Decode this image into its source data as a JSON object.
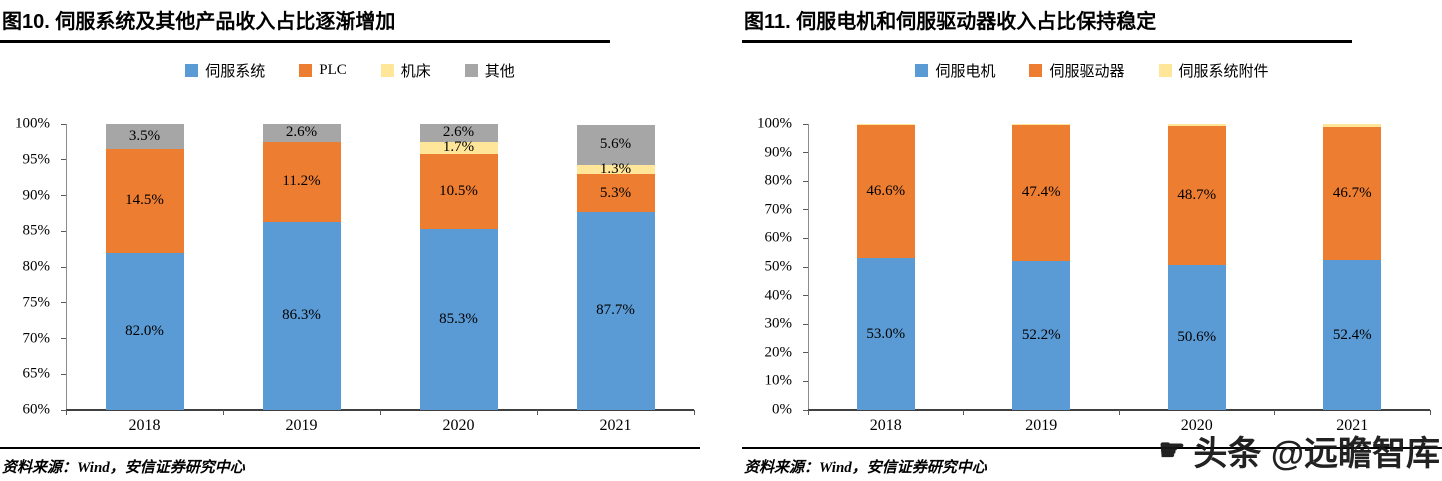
{
  "chart_data": [
    {
      "type": "bar",
      "stacked": true,
      "title": "图10. 伺服系统及其他产品收入占比逐渐增加",
      "source": "资料来源：Wind，安信证券研究中心",
      "categories": [
        "2018",
        "2019",
        "2020",
        "2021"
      ],
      "series": [
        {
          "name": "伺服系统",
          "color": "#5B9BD5",
          "values": [
            82.0,
            86.3,
            85.3,
            87.7
          ],
          "labels": [
            "82.0%",
            "86.3%",
            "85.3%",
            "87.7%"
          ]
        },
        {
          "name": "PLC",
          "color": "#ED7D31",
          "values": [
            14.5,
            11.2,
            10.5,
            5.3
          ],
          "labels": [
            "14.5%",
            "11.2%",
            "10.5%",
            "5.3%"
          ]
        },
        {
          "name": "机床",
          "color": "#FFE699",
          "values": [
            0,
            0,
            1.7,
            1.3
          ],
          "labels": [
            "",
            "",
            "1.7%",
            "1.3%"
          ]
        },
        {
          "name": "其他",
          "color": "#A6A6A6",
          "values": [
            3.5,
            2.6,
            2.6,
            5.6
          ],
          "labels": [
            "3.5%",
            "2.6%",
            "2.6%",
            "5.6%"
          ]
        }
      ],
      "ylim": [
        60,
        100
      ],
      "yticks": [
        "100%",
        "95%",
        "90%",
        "85%",
        "80%",
        "75%",
        "70%",
        "65%",
        "60%"
      ],
      "legend_position": "top",
      "grid": false
    },
    {
      "type": "bar",
      "stacked": true,
      "title": "图11. 伺服电机和伺服驱动器收入占比保持稳定",
      "source": "资料来源：Wind，安信证券研究中心",
      "categories": [
        "2018",
        "2019",
        "2020",
        "2021"
      ],
      "series": [
        {
          "name": "伺服电机",
          "color": "#5B9BD5",
          "values": [
            53.0,
            52.2,
            50.6,
            52.4
          ],
          "labels": [
            "53.0%",
            "52.2%",
            "50.6%",
            "52.4%"
          ]
        },
        {
          "name": "伺服驱动器",
          "color": "#ED7D31",
          "values": [
            46.6,
            47.4,
            48.7,
            46.7
          ],
          "labels": [
            "46.6%",
            "47.4%",
            "48.7%",
            "46.7%"
          ]
        },
        {
          "name": "伺服系统附件",
          "color": "#FFE699",
          "values": [
            0.4,
            0.4,
            0.7,
            0.9
          ],
          "labels": [
            "",
            "",
            "",
            ""
          ]
        }
      ],
      "ylim": [
        0,
        100
      ],
      "yticks": [
        "100%",
        "90%",
        "80%",
        "70%",
        "60%",
        "50%",
        "40%",
        "30%",
        "20%",
        "10%",
        "0%"
      ],
      "legend_position": "top",
      "grid": false
    }
  ],
  "watermark": {
    "icon": "☛",
    "text": "头条 @远瞻智库"
  }
}
